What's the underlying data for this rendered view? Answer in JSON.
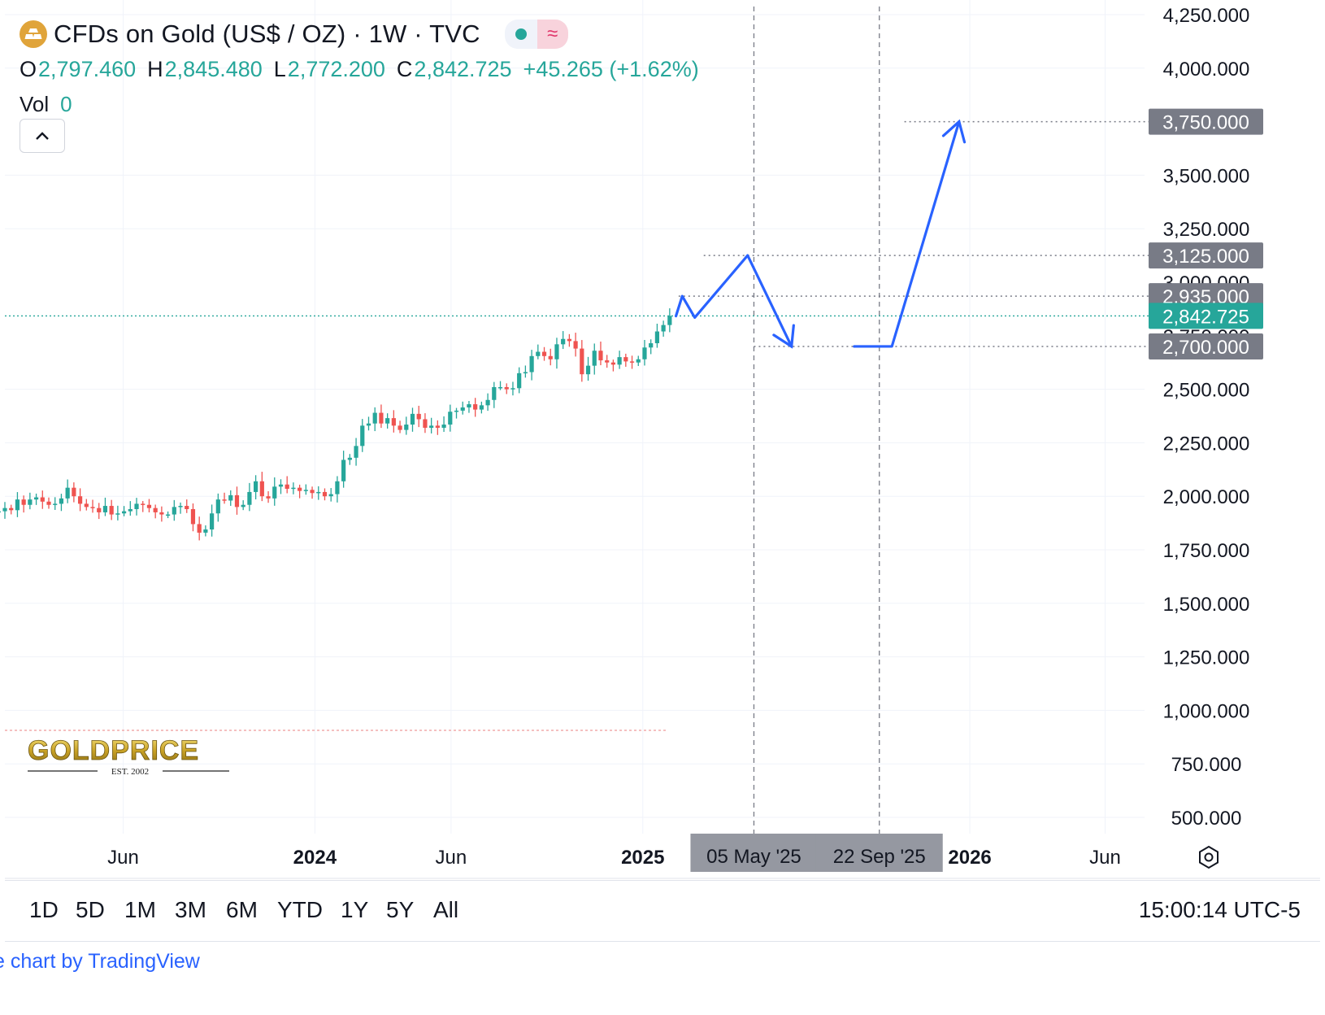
{
  "header": {
    "title": "CFDs on Gold (US$ / OZ) · 1W · TVC",
    "status_icon": "market-open-dot",
    "data_icon": "realtime-wave",
    "ohlc": {
      "o_label": "O",
      "o": "2,797.460",
      "h_label": "H",
      "h": "2,845.480",
      "l_label": "L",
      "l": "2,772.200",
      "c_label": "C",
      "c": "2,842.725",
      "change": "+45.265 (+1.62%)"
    },
    "vol_label": "Vol",
    "vol_value": "0"
  },
  "logo": {
    "text": "GOLDPRICE",
    "sub": "EST. 2002"
  },
  "range_buttons": [
    "1D",
    "5D",
    "1M",
    "3M",
    "6M",
    "YTD",
    "1Y",
    "5Y",
    "All"
  ],
  "clock": "15:00:14 UTC-5",
  "footer": "e chart by TradingView",
  "colors": {
    "up": "#26a69a",
    "down": "#ef5350",
    "drawing": "#2962ff",
    "label_gray": "#787b86"
  },
  "chart_data": {
    "type": "candlestick",
    "title": "CFDs on Gold (US$ / OZ)",
    "interval": "1W",
    "y_axis_position": "right",
    "y_ticks": [
      "4,250.000",
      "4,000.000",
      "3,500.000",
      "3,250.000",
      "2,500.000",
      "2,250.000",
      "2,000.000",
      "1,750.000",
      "1,500.000",
      "1,250.000",
      "1,000.000",
      "750.000",
      "500.000"
    ],
    "y_tick_values": [
      4250,
      4000,
      3500,
      3250,
      2500,
      2250,
      2000,
      1750,
      1500,
      1250,
      1000,
      750,
      500
    ],
    "ylim": [
      470,
      4290
    ],
    "x_ticks": [
      {
        "label": "Jun",
        "date": "2023-06-01",
        "bold": false
      },
      {
        "label": "2024",
        "date": "2024-01-01",
        "bold": true
      },
      {
        "label": "Jun",
        "date": "2024-06-01",
        "bold": false
      },
      {
        "label": "2025",
        "date": "2025-01-01",
        "bold": true
      },
      {
        "label": "2026",
        "date": "2026-01-01",
        "bold": true
      },
      {
        "label": "Jun",
        "date": "2026-06-01",
        "bold": false
      }
    ],
    "xlim": [
      "2023-01-20",
      "2026-07-15"
    ],
    "weekly_closes": [
      1875,
      1925,
      1930,
      1945,
      1935,
      1985,
      1960,
      1985,
      1995,
      1975,
      1960,
      1965,
      1990,
      2040,
      2000,
      1965,
      1950,
      1945,
      1925,
      1955,
      1915,
      1920,
      1930,
      1940,
      1965,
      1960,
      1945,
      1925,
      1915,
      1915,
      1950,
      1955,
      1940,
      1870,
      1830,
      1845,
      1920,
      1985,
      1980,
      2005,
      1950,
      1960,
      2020,
      2070,
      2000,
      1990,
      2045,
      2055,
      2035,
      2040,
      2025,
      2030,
      2015,
      2020,
      2000,
      2010,
      2070,
      2170,
      2180,
      2235,
      2330,
      2340,
      2390,
      2340,
      2365,
      2330,
      2310,
      2335,
      2385,
      2360,
      2320,
      2330,
      2320,
      2335,
      2395,
      2400,
      2415,
      2430,
      2405,
      2425,
      2450,
      2510,
      2510,
      2500,
      2505,
      2575,
      2580,
      2655,
      2675,
      2655,
      2640,
      2710,
      2735,
      2725,
      2690,
      2570,
      2610,
      2680,
      2635,
      2625,
      2615,
      2650,
      2630,
      2625,
      2640,
      2695,
      2715,
      2770,
      2800,
      2842.725
    ],
    "current_price": {
      "value": 2842.725,
      "label": "2,842.725"
    },
    "price_levels": [
      {
        "value": 3750,
        "label": "3,750.000",
        "from_date": "2025-10-20"
      },
      {
        "value": 3125,
        "label": "3,125.000",
        "from_date": "2025-03-10"
      },
      {
        "value": 2935,
        "label": "2,935.000",
        "from_date": "2025-02-10"
      },
      {
        "value": 2700,
        "label": "2,700.000",
        "from_date": "2025-05-05"
      }
    ],
    "date_markers": [
      {
        "date": "2025-05-05",
        "label": "05 May '25"
      },
      {
        "date": "2025-09-22",
        "label": "22 Sep '25"
      }
    ],
    "projection_path": [
      {
        "date": "2025-02-07",
        "value": 2842
      },
      {
        "date": "2025-02-14",
        "value": 2935
      },
      {
        "date": "2025-02-28",
        "value": 2835
      },
      {
        "date": "2025-04-28",
        "value": 3125
      },
      {
        "date": "2025-06-16",
        "value": 2700
      },
      {
        "date": "2025-08-25",
        "value": 2700
      },
      {
        "date": "2025-10-06",
        "value": 2700
      },
      {
        "date": "2025-12-20",
        "value": 3750
      }
    ]
  }
}
